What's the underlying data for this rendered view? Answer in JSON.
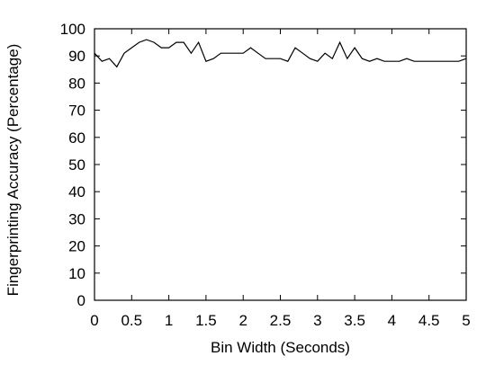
{
  "chart_data": {
    "type": "line",
    "title": "",
    "xlabel": "Bin Width (Seconds)",
    "ylabel": "Fingerprinting Accuracy (Percentage)",
    "xlim": [
      0,
      5
    ],
    "ylim": [
      0,
      100
    ],
    "xticks": [
      0,
      0.5,
      1,
      1.5,
      2,
      2.5,
      3,
      3.5,
      4,
      4.5,
      5
    ],
    "xtick_labels": [
      "0",
      "0.5",
      "1",
      "1.5",
      "2",
      "2.5",
      "3",
      "3.5",
      "4",
      "4.5",
      "5"
    ],
    "yticks": [
      0,
      10,
      20,
      30,
      40,
      50,
      60,
      70,
      80,
      90,
      100
    ],
    "ytick_labels": [
      "0",
      "10",
      "20",
      "30",
      "40",
      "50",
      "60",
      "70",
      "80",
      "90",
      "100"
    ],
    "grid": false,
    "series": [
      {
        "color": "#000000",
        "x": [
          0.0,
          0.1,
          0.2,
          0.3,
          0.4,
          0.5,
          0.6,
          0.7,
          0.8,
          0.9,
          1.0,
          1.1,
          1.2,
          1.3,
          1.4,
          1.5,
          1.6,
          1.7,
          1.8,
          1.9,
          2.0,
          2.1,
          2.2,
          2.3,
          2.4,
          2.5,
          2.6,
          2.7,
          2.8,
          2.9,
          3.0,
          3.1,
          3.2,
          3.3,
          3.4,
          3.5,
          3.6,
          3.7,
          3.8,
          3.9,
          4.0,
          4.1,
          4.2,
          4.3,
          4.4,
          4.5,
          4.6,
          4.7,
          4.8,
          4.9,
          5.0
        ],
        "y": [
          91,
          88,
          89,
          86,
          91,
          93,
          95,
          96,
          95,
          93,
          93,
          95,
          95,
          91,
          95,
          88,
          89,
          91,
          91,
          91,
          91,
          93,
          91,
          89,
          89,
          89,
          88,
          93,
          91,
          89,
          88,
          91,
          89,
          95,
          89,
          93,
          89,
          88,
          89,
          88,
          88,
          88,
          89,
          88,
          88,
          88,
          88,
          88,
          88,
          88,
          89
        ]
      }
    ]
  }
}
